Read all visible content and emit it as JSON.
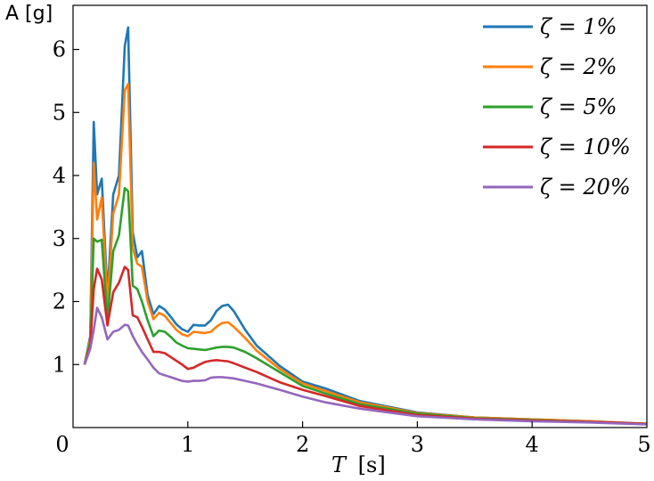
{
  "chart_data": {
    "type": "line",
    "xlabel_var": "T",
    "xlabel_unit": "[s]",
    "ylabel": "A [g]",
    "xlim": [
      0,
      5
    ],
    "ylim": [
      0,
      6.7
    ],
    "x_ticks": [
      "0",
      "1",
      "2",
      "3",
      "4",
      "5"
    ],
    "y_ticks": [
      "1",
      "2",
      "3",
      "4",
      "5",
      "6"
    ],
    "grid": false,
    "legend_position": "top-right",
    "series": [
      {
        "name": "ζ = 1%",
        "color": "#1f77b4",
        "x": [
          0.1,
          0.15,
          0.18,
          0.21,
          0.25,
          0.3,
          0.35,
          0.4,
          0.45,
          0.48,
          0.52,
          0.56,
          0.6,
          0.65,
          0.7,
          0.75,
          0.8,
          0.85,
          0.9,
          0.95,
          1.0,
          1.05,
          1.1,
          1.15,
          1.2,
          1.25,
          1.3,
          1.35,
          1.4,
          1.5,
          1.6,
          1.8,
          2.0,
          2.2,
          2.5,
          3.0,
          3.5,
          4.0,
          4.5,
          5.0
        ],
        "y": [
          1.0,
          1.45,
          4.85,
          3.7,
          3.95,
          2.1,
          3.7,
          4.0,
          6.05,
          6.35,
          3.1,
          2.7,
          2.8,
          2.1,
          1.8,
          1.93,
          1.87,
          1.76,
          1.64,
          1.56,
          1.52,
          1.63,
          1.62,
          1.62,
          1.7,
          1.85,
          1.93,
          1.95,
          1.85,
          1.55,
          1.3,
          0.98,
          0.73,
          0.62,
          0.42,
          0.24,
          0.16,
          0.13,
          0.1,
          0.06
        ]
      },
      {
        "name": "ζ = 2%",
        "color": "#ff7f0e",
        "x": [
          0.1,
          0.15,
          0.18,
          0.21,
          0.25,
          0.3,
          0.35,
          0.4,
          0.45,
          0.48,
          0.52,
          0.56,
          0.6,
          0.65,
          0.7,
          0.75,
          0.8,
          0.85,
          0.9,
          0.95,
          1.0,
          1.05,
          1.1,
          1.15,
          1.2,
          1.25,
          1.3,
          1.35,
          1.4,
          1.5,
          1.6,
          1.8,
          2.0,
          2.2,
          2.5,
          3.0,
          3.5,
          4.0,
          4.5,
          5.0
        ],
        "y": [
          1.0,
          1.4,
          4.2,
          3.3,
          3.65,
          1.95,
          3.4,
          3.7,
          5.35,
          5.45,
          2.85,
          2.6,
          2.55,
          2.0,
          1.72,
          1.82,
          1.77,
          1.66,
          1.55,
          1.48,
          1.45,
          1.52,
          1.51,
          1.5,
          1.52,
          1.6,
          1.66,
          1.67,
          1.6,
          1.42,
          1.22,
          0.93,
          0.7,
          0.58,
          0.4,
          0.23,
          0.16,
          0.13,
          0.1,
          0.06
        ]
      },
      {
        "name": "ζ = 5%",
        "color": "#2ca02c",
        "x": [
          0.1,
          0.15,
          0.18,
          0.21,
          0.25,
          0.3,
          0.35,
          0.4,
          0.45,
          0.48,
          0.52,
          0.56,
          0.6,
          0.65,
          0.7,
          0.75,
          0.8,
          0.85,
          0.9,
          0.95,
          1.0,
          1.05,
          1.1,
          1.15,
          1.2,
          1.25,
          1.3,
          1.35,
          1.4,
          1.5,
          1.6,
          1.8,
          2.0,
          2.2,
          2.5,
          3.0,
          3.5,
          4.0,
          4.5,
          5.0
        ],
        "y": [
          1.0,
          1.35,
          3.0,
          2.95,
          2.98,
          1.7,
          2.8,
          3.05,
          3.8,
          3.75,
          2.25,
          2.2,
          2.0,
          1.7,
          1.45,
          1.54,
          1.52,
          1.44,
          1.35,
          1.3,
          1.26,
          1.25,
          1.24,
          1.23,
          1.25,
          1.27,
          1.28,
          1.28,
          1.27,
          1.2,
          1.1,
          0.88,
          0.66,
          0.54,
          0.37,
          0.22,
          0.15,
          0.12,
          0.09,
          0.06
        ]
      },
      {
        "name": "ζ = 10%",
        "color": "#d62728",
        "x": [
          0.1,
          0.15,
          0.18,
          0.21,
          0.25,
          0.3,
          0.35,
          0.4,
          0.45,
          0.48,
          0.52,
          0.56,
          0.6,
          0.65,
          0.7,
          0.75,
          0.8,
          0.85,
          0.9,
          0.95,
          1.0,
          1.05,
          1.1,
          1.15,
          1.2,
          1.25,
          1.3,
          1.35,
          1.4,
          1.5,
          1.6,
          1.8,
          2.0,
          2.2,
          2.5,
          3.0,
          3.5,
          4.0,
          4.5,
          5.0
        ],
        "y": [
          1.0,
          1.3,
          2.2,
          2.52,
          2.35,
          1.62,
          2.15,
          2.3,
          2.55,
          2.5,
          1.78,
          1.75,
          1.6,
          1.4,
          1.2,
          1.2,
          1.18,
          1.12,
          1.06,
          1.0,
          0.93,
          0.95,
          1.0,
          1.04,
          1.06,
          1.07,
          1.06,
          1.05,
          1.02,
          0.95,
          0.88,
          0.72,
          0.6,
          0.5,
          0.34,
          0.2,
          0.14,
          0.11,
          0.09,
          0.06
        ]
      },
      {
        "name": "ζ = 20%",
        "color": "#9467bd",
        "x": [
          0.1,
          0.15,
          0.18,
          0.21,
          0.25,
          0.3,
          0.35,
          0.4,
          0.45,
          0.48,
          0.52,
          0.56,
          0.6,
          0.65,
          0.7,
          0.75,
          0.8,
          0.85,
          0.9,
          0.95,
          1.0,
          1.05,
          1.1,
          1.15,
          1.2,
          1.25,
          1.3,
          1.35,
          1.4,
          1.5,
          1.6,
          1.8,
          2.0,
          2.2,
          2.5,
          3.0,
          3.5,
          4.0,
          4.5,
          5.0
        ],
        "y": [
          1.0,
          1.25,
          1.55,
          1.9,
          1.75,
          1.4,
          1.52,
          1.55,
          1.63,
          1.62,
          1.45,
          1.32,
          1.2,
          1.08,
          0.95,
          0.86,
          0.83,
          0.8,
          0.77,
          0.74,
          0.73,
          0.74,
          0.74,
          0.75,
          0.79,
          0.8,
          0.8,
          0.79,
          0.78,
          0.74,
          0.7,
          0.6,
          0.49,
          0.4,
          0.3,
          0.18,
          0.13,
          0.1,
          0.08,
          0.05
        ]
      }
    ]
  }
}
